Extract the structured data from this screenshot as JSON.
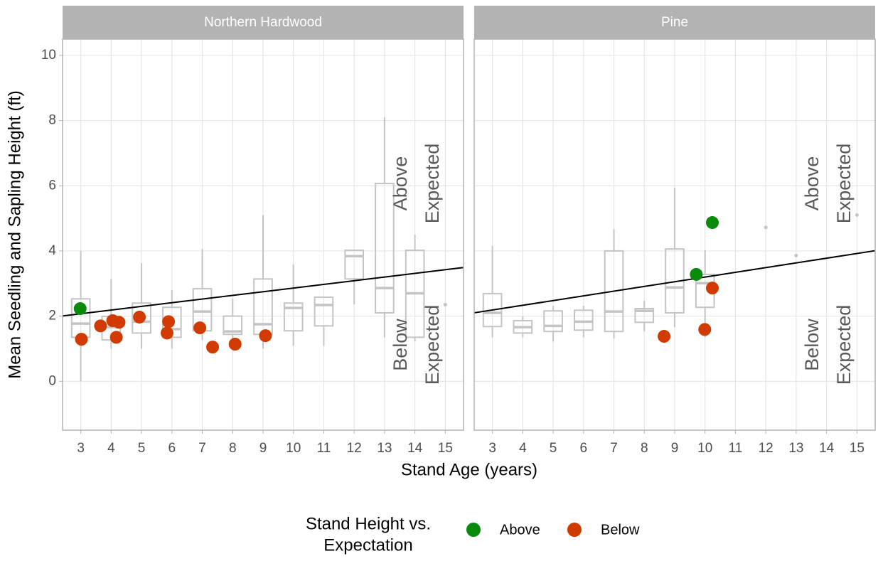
{
  "chart_data": {
    "type": "box-scatter",
    "y_label": "Mean Seedling and Sapling Height (ft)",
    "x_label": "Stand Age (years)",
    "ylim": [
      -1.5,
      10.5
    ],
    "yticks": [
      0,
      2,
      4,
      6,
      8,
      10
    ],
    "xlim": [
      2.4,
      15.6
    ],
    "xticks": [
      3,
      4,
      5,
      6,
      7,
      8,
      9,
      10,
      11,
      12,
      13,
      14,
      15
    ],
    "grid": true,
    "legend": {
      "title": [
        "Stand Height vs.",
        "Expectation"
      ],
      "position": "bottom"
    },
    "series": [
      {
        "name": "Above",
        "color": "#0a8a0a"
      },
      {
        "name": "Below",
        "color": "#d13b00"
      }
    ],
    "panels": [
      {
        "title": "Northern Hardwood",
        "annotations": [
          [
            "Above",
            "Expected"
          ],
          [
            "Below",
            "Expected"
          ]
        ],
        "boxes": {
          "x": [
            3,
            4,
            5,
            6,
            7,
            8,
            9,
            10,
            11,
            12,
            13,
            14
          ],
          "whisker_low": [
            0.0,
            1.0,
            1.0,
            1.0,
            1.27,
            1.27,
            1.0,
            1.09,
            1.09,
            2.36,
            1.35,
            1.22
          ],
          "q1": [
            1.35,
            1.27,
            1.48,
            1.35,
            1.55,
            1.44,
            1.44,
            1.55,
            1.7,
            3.14,
            2.1,
            1.35
          ],
          "median": [
            1.77,
            1.66,
            1.83,
            1.6,
            2.14,
            1.53,
            1.75,
            2.25,
            2.34,
            3.84,
            2.86,
            2.7
          ],
          "q3": [
            2.53,
            1.99,
            2.4,
            2.27,
            2.84,
            2.0,
            3.14,
            2.4,
            2.58,
            4.02,
            6.07,
            4.02
          ],
          "whisker_high": [
            4.0,
            3.14,
            3.62,
            2.8,
            4.06,
            2.53,
            5.1,
            3.58,
            2.58,
            4.02,
            8.1,
            4.5
          ]
        },
        "singles": {
          "x": [
            15
          ],
          "values": [
            2.35
          ]
        },
        "trend": {
          "intercept": 1.735,
          "slope": 0.1126
        },
        "series": [
          {
            "x": [
              2.98
            ],
            "values": [
              2.23
            ]
          },
          {
            "x": [
              3.02,
              3.65,
              4.05,
              4.26,
              4.17,
              4.93,
              5.89,
              5.84,
              6.92,
              7.34,
              8.08,
              9.08
            ],
            "values": [
              1.29,
              1.7,
              1.86,
              1.81,
              1.35,
              1.97,
              1.83,
              1.48,
              1.64,
              1.05,
              1.14,
              1.4
            ]
          }
        ]
      },
      {
        "title": "Pine",
        "annotations": [
          [
            "Above",
            "Expected"
          ],
          [
            "Below",
            "Expected"
          ]
        ],
        "boxes": {
          "x": [
            3,
            4,
            5,
            6,
            7,
            8,
            9,
            10
          ],
          "whisker_low": [
            1.35,
            1.35,
            1.22,
            1.35,
            1.31,
            1.53,
            1.66,
            1.35
          ],
          "q1": [
            1.68,
            1.48,
            1.53,
            1.57,
            1.53,
            1.81,
            2.1,
            2.27
          ],
          "median": [
            2.1,
            1.66,
            1.7,
            1.83,
            2.14,
            2.16,
            2.88,
            3.01
          ],
          "q3": [
            2.69,
            1.86,
            2.16,
            2.18,
            4.0,
            2.23,
            4.06,
            3.28
          ],
          "whisker_high": [
            4.15,
            1.99,
            2.31,
            2.31,
            4.67,
            2.47,
            5.94,
            4.02
          ]
        },
        "singles": {
          "x": [
            12,
            13,
            15
          ],
          "values": [
            4.72,
            3.86,
            5.1
          ]
        },
        "trend": {
          "intercept": 1.755,
          "slope": 0.1444
        },
        "series": [
          {
            "x": [
              9.71,
              10.24
            ],
            "values": [
              3.28,
              4.87
            ]
          },
          {
            "x": [
              8.65,
              9.99,
              10.24
            ],
            "values": [
              1.38,
              1.59,
              2.86
            ]
          }
        ]
      }
    ]
  }
}
